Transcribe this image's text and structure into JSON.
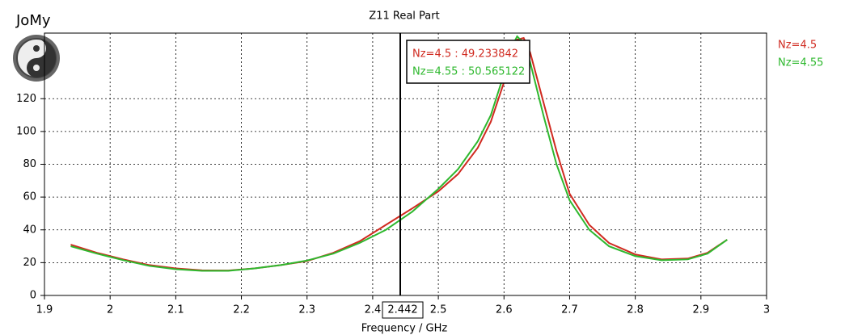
{
  "brand": "JoMy",
  "chart_data": {
    "type": "line",
    "title": "Z11 Real Part",
    "x_label": "Frequency / GHz",
    "xlim": [
      1.9,
      3
    ],
    "xticks": [
      1.9,
      2,
      2.1,
      2.2,
      2.3,
      2.4,
      2.5,
      2.6,
      2.7,
      2.8,
      2.9,
      3
    ],
    "ylim": [
      0,
      160
    ],
    "yticks": [
      0,
      20,
      40,
      60,
      80,
      100,
      120
    ],
    "grid": true,
    "legend": "right",
    "x": [
      1.94,
      1.98,
      2.02,
      2.06,
      2.1,
      2.14,
      2.18,
      2.22,
      2.26,
      2.3,
      2.34,
      2.38,
      2.42,
      2.46,
      2.5,
      2.53,
      2.56,
      2.58,
      2.6,
      2.61,
      2.62,
      2.63,
      2.64,
      2.66,
      2.68,
      2.7,
      2.73,
      2.76,
      2.8,
      2.84,
      2.88,
      2.91,
      2.94
    ],
    "series": [
      {
        "name": "Nz=4.5",
        "color": "#d02a20",
        "values": [
          31,
          26,
          22,
          18.5,
          16.5,
          15.3,
          15.2,
          16.5,
          18.5,
          21,
          26,
          33,
          43,
          53,
          63.5,
          74,
          90,
          106,
          130,
          145,
          156,
          157,
          148,
          118,
          88,
          62,
          43,
          32,
          25,
          22,
          22.5,
          26,
          34
        ]
      },
      {
        "name": "Nz=4.55",
        "color": "#2eb82e",
        "values": [
          30,
          25.5,
          21.5,
          18,
          16,
          15,
          15,
          16.5,
          18.5,
          21.3,
          25.5,
          32,
          40,
          51,
          65,
          77,
          94,
          110,
          135,
          150,
          158,
          154,
          142,
          110,
          80,
          58,
          40,
          30,
          24,
          21.5,
          22,
          25.5,
          34
        ]
      }
    ],
    "cursor": {
      "x": 2.442,
      "labels": [
        "Nz=4.5 : 49.233842",
        "Nz=4.55 : 50.565122"
      ]
    }
  }
}
